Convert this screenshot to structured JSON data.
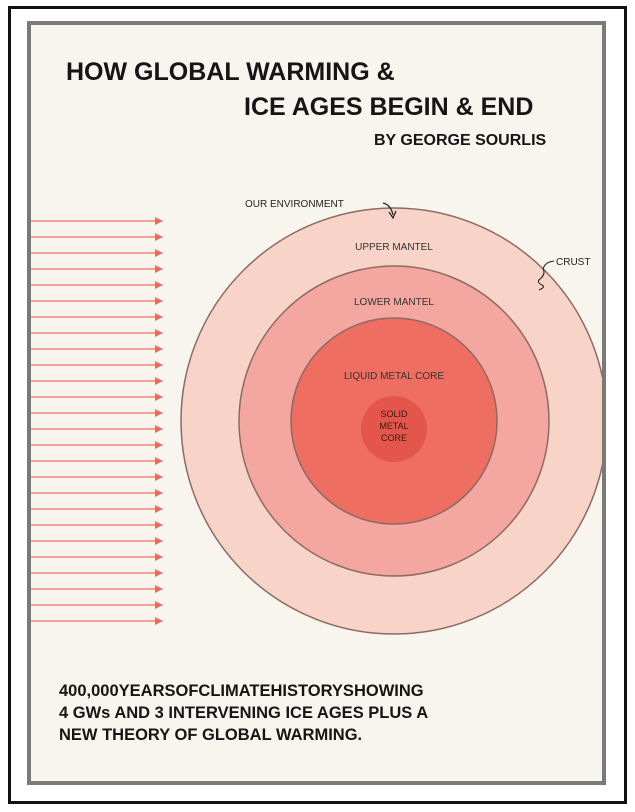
{
  "cover": {
    "title_line_1": "HOW GLOBAL WARMING &",
    "title_line_2": "ICE AGES BEGIN & END",
    "byline": "BY GEORGE SOURLIS",
    "footer_lines": [
      "400,000YEARSOFCLIMATEHISTORYSHOWING",
      "4 GWs AND 3 INTERVENING ICE AGES PLUS A",
      "NEW THEORY OF GLOBAL WARMING."
    ]
  },
  "diagram": {
    "environment_label": "OUR ENVIRONMENT",
    "crust_label": "CRUST",
    "upper_mantel_label": "UPPER MANTEL",
    "lower_mantel_label": "LOWER MANTEL",
    "liquid_core_label": "LIQUID METAL CORE",
    "solid_core_label_1": "SOLID",
    "solid_core_label_2": "METAL",
    "solid_core_label_3": "CORE",
    "arrow_count": 26
  },
  "colors": {
    "cover_background": "#f7f5ee",
    "upper_mantel": "#f8d3c8",
    "lower_mantel": "#f4a7a0",
    "liquid_core": "#ef6e62",
    "solid_core": "#e4554c",
    "arrows": "#ec6c5e"
  }
}
